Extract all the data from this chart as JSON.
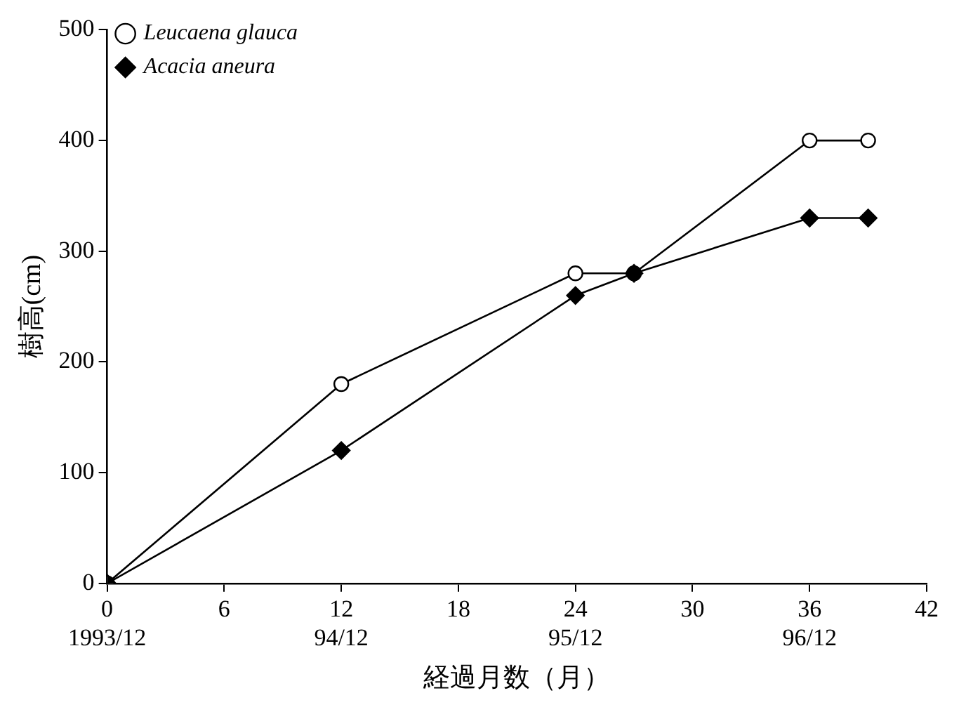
{
  "chart_data": {
    "type": "line",
    "xlabel": "経過月数（月）",
    "ylabel": "樹高(cm)",
    "xlim": [
      0,
      42
    ],
    "xticks": [
      {
        "value": 0,
        "label": "0\n1993/12"
      },
      6,
      {
        "value": 12,
        "label": "12\n94/12"
      },
      18,
      {
        "value": 24,
        "label": "24\n95/12"
      },
      30,
      {
        "value": 36,
        "label": "36\n96/12"
      },
      42
    ],
    "ylim": [
      0,
      500
    ],
    "yticks": [
      0,
      100,
      200,
      300,
      400,
      500
    ],
    "grid": false,
    "legend": "top left",
    "line_style": "solid",
    "series": [
      {
        "name": "Leucaena glauca",
        "color": "#000000",
        "marker": "circle",
        "x": [
          0,
          12,
          24,
          27,
          36,
          39
        ],
        "values": [
          0,
          180,
          280,
          280,
          400,
          400
        ]
      },
      {
        "name": "Acacia aneura",
        "color": "#000000",
        "marker": "diamond",
        "x": [
          0,
          12,
          24,
          27,
          36,
          39
        ],
        "values": [
          0,
          120,
          260,
          280,
          330,
          330
        ]
      }
    ]
  }
}
